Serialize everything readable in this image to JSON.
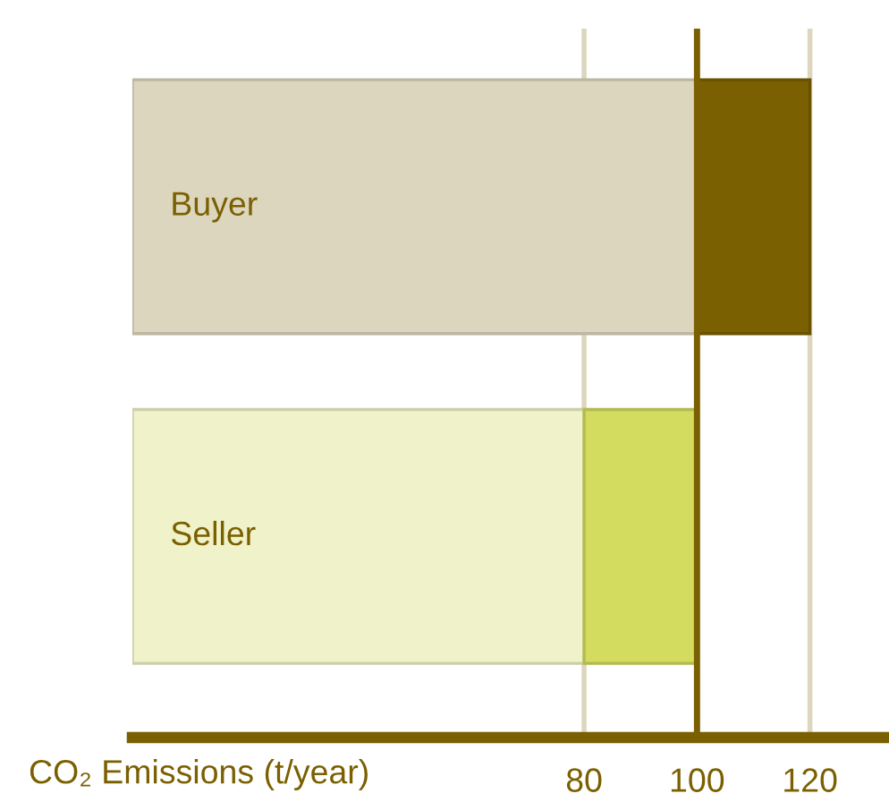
{
  "chart_data": {
    "type": "bar",
    "orientation": "horizontal",
    "stacked": true,
    "categories": [
      "Buyer",
      "Seller"
    ],
    "series": [
      {
        "colors": [
          "#ddd6bf",
          "#f0f3c9"
        ],
        "values": [
          100,
          80
        ]
      },
      {
        "colors": [
          "#7a6000",
          "#d3dc5e"
        ],
        "values": [
          20,
          20
        ]
      }
    ],
    "xlabel": "CO₂ Emissions (t/year)",
    "xlim": [
      0,
      134
    ],
    "xticks": [
      80,
      100,
      120
    ],
    "grid": "x",
    "legend": false,
    "ref_lines": [
      {
        "axis": "x",
        "value": 100,
        "color": "#7a6000"
      }
    ]
  }
}
